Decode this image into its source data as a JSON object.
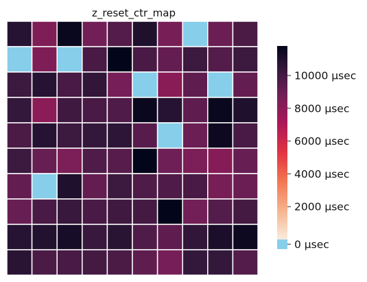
{
  "chart_data": {
    "type": "heatmap",
    "title": "z_reset_ctr_map",
    "rows": 10,
    "cols": 10,
    "values": [
      [
        10800,
        8400,
        11600,
        8800,
        9600,
        11000,
        8600,
        0,
        9000,
        9800
      ],
      [
        0,
        8400,
        0,
        9900,
        11800,
        9900,
        9200,
        10200,
        9600,
        10200
      ],
      [
        10200,
        10800,
        9900,
        10500,
        8700,
        0,
        8100,
        9300,
        0,
        9200
      ],
      [
        10400,
        8000,
        10100,
        9900,
        9700,
        11600,
        10800,
        9300,
        11600,
        11000
      ],
      [
        9800,
        10800,
        10200,
        10400,
        10600,
        9500,
        0,
        9000,
        11500,
        9900
      ],
      [
        10200,
        9100,
        8500,
        9700,
        9500,
        11800,
        8900,
        8500,
        8200,
        9100
      ],
      [
        9200,
        0,
        11000,
        9200,
        10200,
        9700,
        9700,
        9900,
        8600,
        9000
      ],
      [
        9100,
        9900,
        10300,
        9900,
        10100,
        10000,
        11800,
        8800,
        9600,
        10000
      ],
      [
        10800,
        10900,
        11200,
        10300,
        10700,
        9700,
        9300,
        10500,
        11100,
        11500
      ],
      [
        10700,
        9800,
        9900,
        10000,
        9800,
        9300,
        8700,
        10400,
        10400,
        9600
      ]
    ],
    "colorbar": {
      "min": 0,
      "max": 11800,
      "ticks": [
        0,
        2000,
        4000,
        6000,
        8000,
        10000
      ],
      "tick_labels": [
        "0 µsec",
        "2000 µsec",
        "4000 µsec",
        "6000 µsec",
        "8000 µsec",
        "10000 µsec"
      ],
      "zero_color": "#87ceeb",
      "colormap": "rocket_r"
    },
    "grid": true,
    "grid_color": "#ffffff"
  }
}
